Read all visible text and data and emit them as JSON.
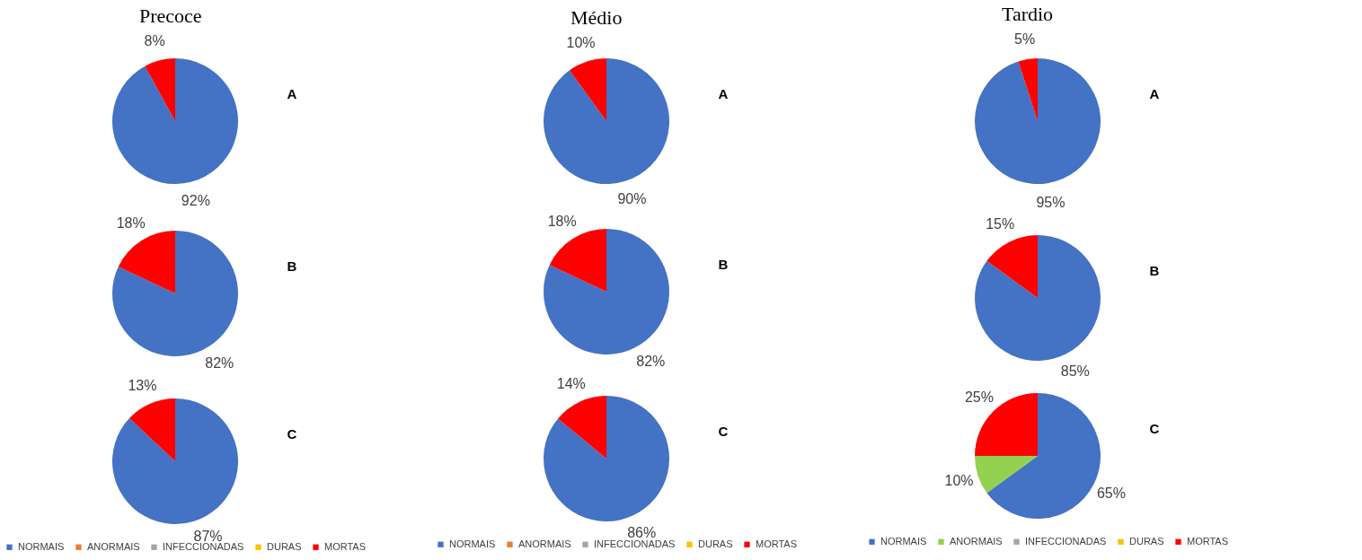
{
  "chart_data": [
    {
      "type": "pie",
      "title": "Precoce",
      "categories": [
        "NORMAIS",
        "ANORMAIS",
        "INFECCIONADAS",
        "DURAS",
        "MORTAS"
      ],
      "colors": [
        "#4472c4",
        "#ed7d31",
        "#a5a5a5",
        "#ffc000",
        "#ff0000"
      ],
      "legend": "bottom",
      "series": [
        {
          "name": "A",
          "values": [
            92,
            0,
            0,
            0,
            8
          ],
          "value_labels": [
            "92%",
            null,
            null,
            null,
            "8%"
          ]
        },
        {
          "name": "B",
          "values": [
            82,
            0,
            0,
            0,
            18
          ],
          "value_labels": [
            "82%",
            null,
            null,
            null,
            "18%"
          ]
        },
        {
          "name": "C",
          "values": [
            87,
            0,
            0,
            0,
            13
          ],
          "value_labels": [
            "87%",
            null,
            null,
            null,
            "13%"
          ]
        }
      ]
    },
    {
      "type": "pie",
      "title": "Médio",
      "categories": [
        "NORMAIS",
        "ANORMAIS",
        "INFECCIONADAS",
        "DURAS",
        "MORTAS"
      ],
      "colors": [
        "#4472c4",
        "#ed7d31",
        "#a5a5a5",
        "#ffc000",
        "#ff0000"
      ],
      "legend": "bottom",
      "series": [
        {
          "name": "A",
          "values": [
            90,
            0,
            0,
            0,
            10
          ],
          "value_labels": [
            "90%",
            null,
            null,
            null,
            "10%"
          ]
        },
        {
          "name": "B",
          "values": [
            82,
            0,
            0,
            0,
            18
          ],
          "value_labels": [
            "82%",
            null,
            null,
            null,
            "18%"
          ]
        },
        {
          "name": "C",
          "values": [
            86,
            0,
            0,
            0,
            14
          ],
          "value_labels": [
            "86%",
            null,
            null,
            null,
            "14%"
          ]
        }
      ]
    },
    {
      "type": "pie",
      "title": "Tardio",
      "categories": [
        "NORMAIS",
        "ANORMAIS",
        "INFECCIONADAS",
        "DURAS",
        "MORTAS"
      ],
      "colors": [
        "#4472c4",
        "#92d050",
        "#a5a5a5",
        "#ffc000",
        "#ff0000"
      ],
      "legend": "bottom",
      "series": [
        {
          "name": "A",
          "values": [
            95,
            0,
            0,
            0,
            5
          ],
          "value_labels": [
            "95%",
            null,
            null,
            null,
            "5%"
          ]
        },
        {
          "name": "B",
          "values": [
            85,
            0,
            0,
            0,
            15
          ],
          "value_labels": [
            "85%",
            null,
            null,
            null,
            "15%"
          ]
        },
        {
          "name": "C",
          "values": [
            65,
            10,
            0,
            0,
            25
          ],
          "value_labels": [
            "65%",
            "10%",
            null,
            null,
            "25%"
          ]
        }
      ]
    }
  ]
}
